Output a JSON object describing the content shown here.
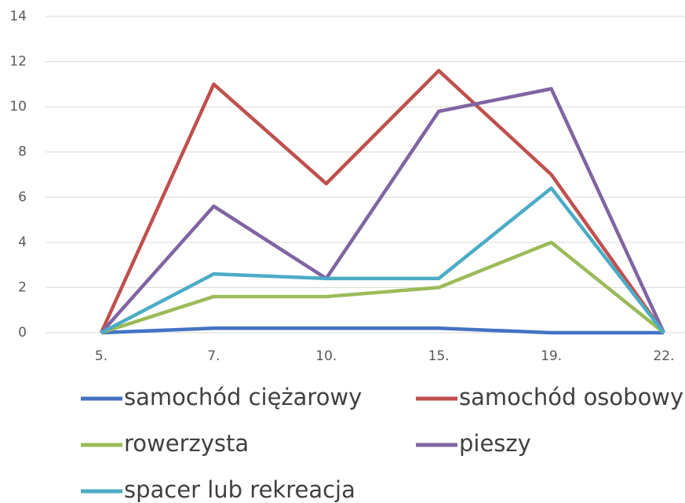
{
  "chart_data": {
    "type": "line",
    "categories": [
      "5.",
      "7.",
      "10.",
      "15.",
      "19.",
      "22."
    ],
    "series": [
      {
        "name": "samochód ciężarowy",
        "color": "#4472c4",
        "values": [
          0,
          0.2,
          0.2,
          0.2,
          0,
          0
        ]
      },
      {
        "name": "samochód osobowy",
        "color": "#c0504d",
        "values": [
          0,
          11,
          6.6,
          11.6,
          7,
          0
        ]
      },
      {
        "name": "rowerzysta",
        "color": "#9bbb59",
        "values": [
          0,
          1.6,
          1.6,
          2,
          4,
          0
        ]
      },
      {
        "name": "pieszy",
        "color": "#8064a2",
        "values": [
          0,
          5.6,
          2.4,
          9.8,
          10.8,
          0
        ]
      },
      {
        "name": "spacer lub rekreacja",
        "color": "#4bacc6",
        "values": [
          0,
          2.6,
          2.4,
          2.4,
          6.4,
          0
        ]
      }
    ],
    "ylim": [
      0,
      14
    ],
    "yticks": [
      0,
      2,
      4,
      6,
      8,
      10,
      12,
      14
    ],
    "grid": true,
    "legend": "bottom"
  }
}
